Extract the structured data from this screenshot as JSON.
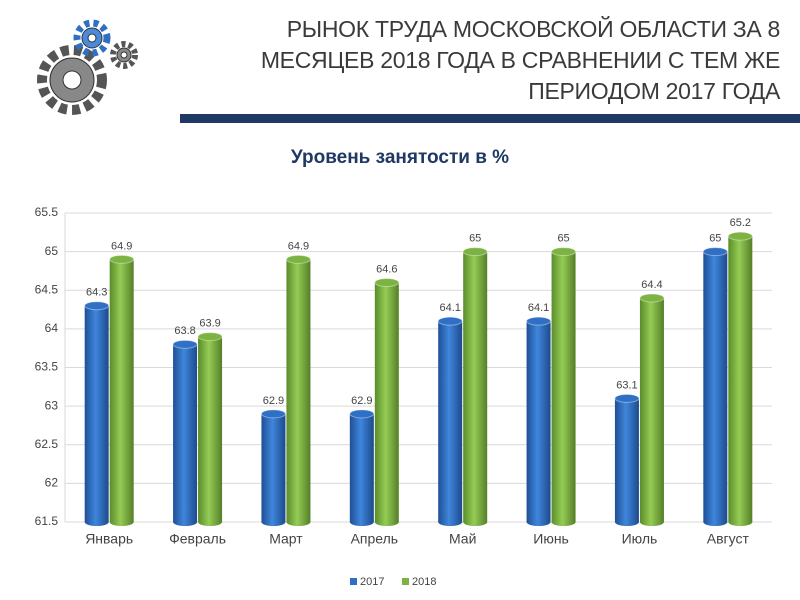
{
  "header": {
    "title": "РЫНОК ТРУДА МОСКОВСКОЙ ОБЛАСТИ ЗА 8 МЕСЯЦЕВ 2018 ГОДА В СРАВНЕНИИ С ТЕМ ЖЕ ПЕРИОДОМ 2017 ГОДА"
  },
  "chart_data": {
    "type": "bar",
    "title": "Уровень занятости в %",
    "categories": [
      "Январь",
      "Февраль",
      "Март",
      "Апрель",
      "Май",
      "Июнь",
      "Июль",
      "Август"
    ],
    "series": [
      {
        "name": "2017",
        "color": "#2f6fc5",
        "values": [
          64.3,
          63.8,
          62.9,
          62.9,
          64.1,
          64.1,
          63.1,
          65
        ]
      },
      {
        "name": "2018",
        "color": "#7db343",
        "values": [
          64.9,
          63.9,
          64.9,
          64.6,
          65,
          65,
          64.4,
          65.2
        ]
      }
    ],
    "ylim": [
      61.5,
      65.5
    ],
    "yticks": [
      61.5,
      62,
      62.5,
      63,
      63.5,
      64,
      64.5,
      65,
      65.5
    ],
    "grid": true,
    "legend": "bottom"
  }
}
